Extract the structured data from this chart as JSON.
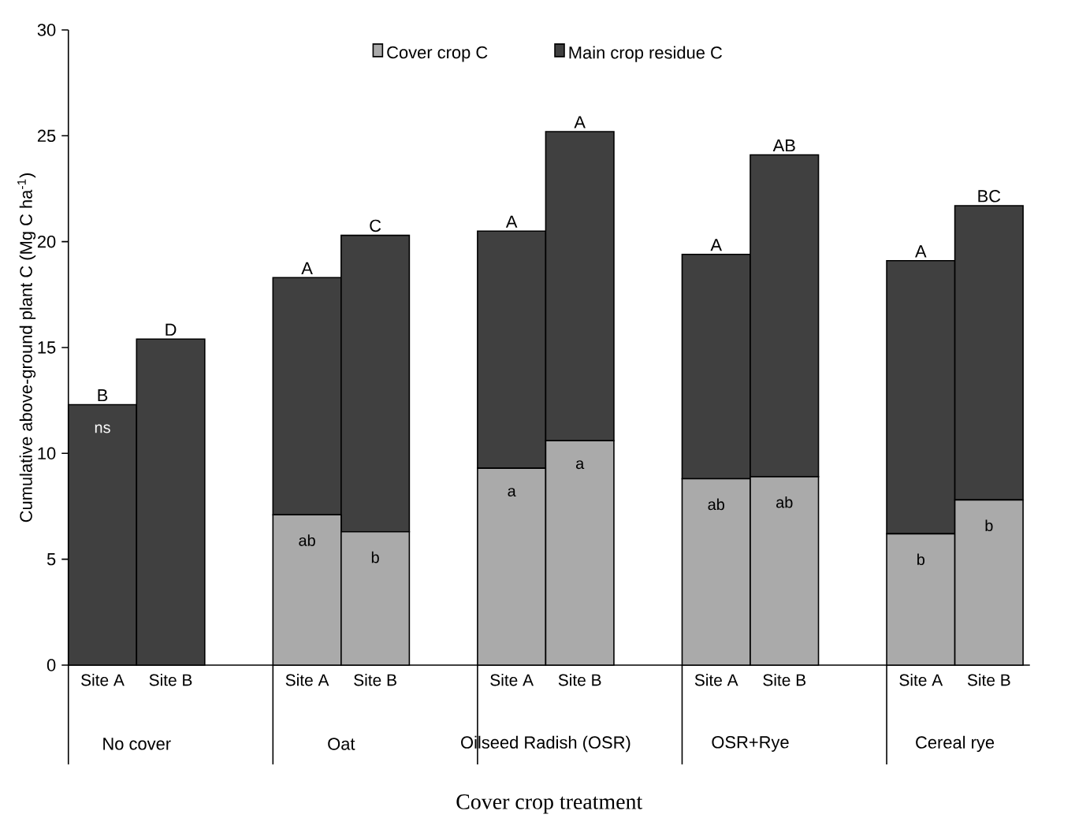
{
  "chart_data": {
    "type": "bar",
    "stacked": true,
    "xlabel": "Cover crop treatment",
    "ylabel": "Cumulative above-ground plant C (Mg C ha$^{-1}$)",
    "categories": [
      "Site A",
      "Site B",
      "Site A",
      "Site B",
      "Site A",
      "Site B",
      "Site A",
      "Site B",
      "Site A",
      "Site B"
    ],
    "annotations": [
      "No cover",
      "Oat",
      "Oilseed Radish (OSR)",
      "OSR+Rye",
      "Cereal rye"
    ],
    "series": [
      {
        "name": "Cover crop C",
        "color": "#aaaaaa",
        "values": [
          0,
          0,
          7.1,
          6.3,
          9.3,
          10.6,
          8.8,
          8.9,
          6.2,
          7.8
        ],
        "value_labels": [
          "ns",
          null,
          "ab",
          "b",
          "a",
          "a",
          "ab",
          "ab",
          "b",
          "b"
        ]
      },
      {
        "name": "Main crop residue C",
        "color": "#404040",
        "values": [
          12.3,
          15.4,
          11.2,
          14.0,
          11.2,
          14.6,
          10.6,
          15.2,
          12.9,
          13.9
        ],
        "value_labels": [
          "B",
          "D",
          "A",
          "C",
          "A",
          "A",
          "A",
          "AB",
          "A",
          "BC"
        ]
      }
    ],
    "ylim": [
      0,
      30
    ],
    "yticks": [
      0,
      5,
      10,
      15,
      20,
      25,
      30
    ],
    "grid": false,
    "legend": "top"
  }
}
